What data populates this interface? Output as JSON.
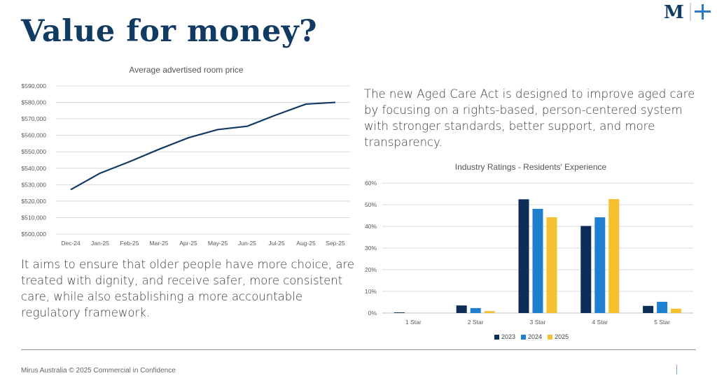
{
  "slide": {
    "title": "Value for money?",
    "paragraph_right": "The new Aged Care Act is designed to improve aged care by focusing on a rights-based, person-centered system with stronger standards, better support, and more transparency.",
    "paragraph_left": "It aims to ensure that older people have more choice, are treated with dignity, and receive safer, more consistent care, while also establishing a more accountable regulatory framework.",
    "footer": "Mirus Australia © 2025  Commercial in Confidence",
    "logo_text": "M",
    "colors": {
      "title": "#123b63",
      "line": "#123b63",
      "s2023": "#0d2d59",
      "s2024": "#1f7fd1",
      "s2025": "#f5c02e"
    }
  },
  "chart_data": [
    {
      "type": "line",
      "title": "Average advertised room price",
      "categories": [
        "Dec-24",
        "Jan-25",
        "Feb-25",
        "Mar-25",
        "Apr-25",
        "May-25",
        "Jun-25",
        "Jul-25",
        "Aug-25",
        "Sep-25"
      ],
      "values": [
        527000,
        537000,
        544000,
        551500,
        558500,
        563500,
        565500,
        572500,
        579000,
        580000
      ],
      "ylim": [
        500000,
        590000
      ],
      "yticks": [
        500000,
        510000,
        520000,
        530000,
        540000,
        550000,
        560000,
        570000,
        580000,
        590000
      ],
      "ytick_labels": [
        "$500,000",
        "$510,000",
        "$520,000",
        "$530,000",
        "$540,000",
        "$550,000",
        "$560,000",
        "$570,000",
        "$580,000",
        "$590,000"
      ],
      "grid": true,
      "xlabel": "",
      "ylabel": ""
    },
    {
      "type": "bar",
      "title": "Industry Ratings - Residents' Experience",
      "categories": [
        "1 Star",
        "2 Star",
        "3 Star",
        "4 Star",
        "5 Star"
      ],
      "series": [
        {
          "name": "2023",
          "values": [
            0.3,
            3.5,
            52.5,
            40.2,
            3.3
          ]
        },
        {
          "name": "2024",
          "values": [
            0.0,
            2.3,
            48.1,
            44.2,
            5.2
          ]
        },
        {
          "name": "2025",
          "values": [
            0.0,
            0.9,
            44.2,
            52.6,
            2.0
          ]
        }
      ],
      "ylim": [
        0,
        60
      ],
      "yticks": [
        0,
        10,
        20,
        30,
        40,
        50,
        60
      ],
      "ytick_labels": [
        "0%",
        "10%",
        "20%",
        "30%",
        "40%",
        "50%",
        "60%"
      ],
      "legend": "bottom",
      "grid": true
    }
  ]
}
